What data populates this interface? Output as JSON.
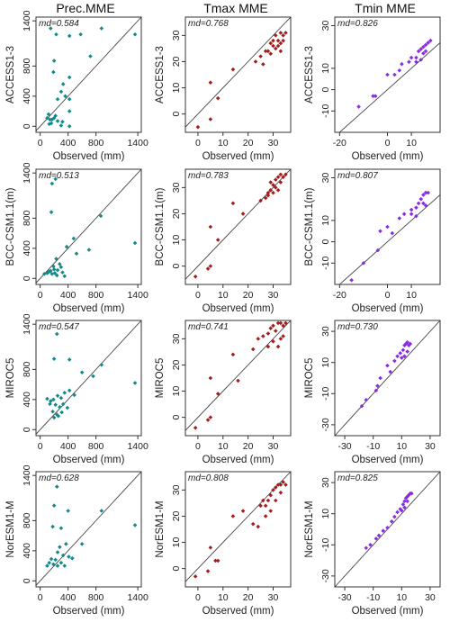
{
  "column_titles": {
    "prec": "Prec.MME",
    "tmax": "Tmax MME",
    "tmin": "Tmin MME"
  },
  "x_label": "Observed (mm)",
  "colors": {
    "prec": "#128a8a",
    "tmax": "#a51c1c",
    "tmin": "#8a2be2",
    "diagonal": "#333333"
  },
  "chart_data": [
    {
      "type": "scatter",
      "row": 0,
      "col": 0,
      "ylabel": "ACCESS1-3",
      "xlabel": "Observed (mm)",
      "annotation": "md=0.584",
      "color": "#128a8a",
      "xlim": [
        -60,
        1450
      ],
      "ylim": [
        -80,
        1450
      ],
      "xticks": [
        0,
        400,
        800,
        1400
      ],
      "yticks": [
        0,
        400,
        800,
        1400
      ],
      "points": [
        [
          150,
          1300
        ],
        [
          230,
          1220
        ],
        [
          420,
          1200
        ],
        [
          580,
          1220
        ],
        [
          880,
          1300
        ],
        [
          1360,
          1220
        ],
        [
          720,
          930
        ],
        [
          200,
          870
        ],
        [
          190,
          720
        ],
        [
          420,
          650
        ],
        [
          330,
          560
        ],
        [
          300,
          460
        ],
        [
          360,
          400
        ],
        [
          420,
          360
        ],
        [
          250,
          360
        ],
        [
          420,
          200
        ],
        [
          120,
          160
        ],
        [
          220,
          140
        ],
        [
          100,
          110
        ],
        [
          170,
          90
        ],
        [
          250,
          70
        ],
        [
          320,
          60
        ],
        [
          130,
          30
        ],
        [
          160,
          40
        ],
        [
          300,
          10
        ],
        [
          420,
          0
        ],
        [
          140,
          90
        ],
        [
          200,
          110
        ]
      ]
    },
    {
      "type": "scatter",
      "row": 0,
      "col": 1,
      "ylabel": "ACCESS1-3",
      "xlabel": "Observed (mm)",
      "annotation": "md=0.768",
      "color": "#a51c1c",
      "xlim": [
        -5,
        37
      ],
      "ylim": [
        -7,
        37
      ],
      "xticks": [
        0,
        10,
        20,
        30
      ],
      "yticks": [
        0,
        10,
        20,
        30
      ],
      "points": [
        [
          0,
          -5
        ],
        [
          5,
          -2
        ],
        [
          5,
          12
        ],
        [
          8,
          6
        ],
        [
          14,
          17
        ],
        [
          23,
          20
        ],
        [
          25,
          22
        ],
        [
          27,
          24
        ],
        [
          29,
          23
        ],
        [
          30,
          26
        ],
        [
          31,
          30
        ],
        [
          32,
          28
        ],
        [
          33,
          31
        ],
        [
          33,
          27
        ],
        [
          34,
          30
        ],
        [
          35,
          31
        ],
        [
          30,
          28
        ],
        [
          31,
          25
        ],
        [
          32,
          26
        ],
        [
          28,
          24
        ],
        [
          33,
          24
        ],
        [
          34,
          28
        ],
        [
          26,
          19
        ],
        [
          29,
          27
        ]
      ]
    },
    {
      "type": "scatter",
      "row": 0,
      "col": 2,
      "ylabel": "ACCESS1-3",
      "xlabel": "Observed (mm)",
      "annotation": "md=0.826",
      "color": "#8a2be2",
      "xlim": [
        -22,
        22
      ],
      "ylim": [
        -20,
        34
      ],
      "xticks": [
        -20,
        0,
        10
      ],
      "yticks": [
        -10,
        0,
        10,
        30
      ],
      "points": [
        [
          -12,
          -8
        ],
        [
          -6,
          -3
        ],
        [
          -5,
          -3
        ],
        [
          0,
          7
        ],
        [
          3,
          7
        ],
        [
          5,
          9
        ],
        [
          6,
          12
        ],
        [
          10,
          15
        ],
        [
          12,
          15
        ],
        [
          13,
          18
        ],
        [
          14,
          19
        ],
        [
          15,
          17
        ],
        [
          15,
          20
        ],
        [
          16,
          21
        ],
        [
          17,
          22
        ],
        [
          18,
          23
        ],
        [
          16,
          18
        ],
        [
          12,
          13
        ],
        [
          9,
          13
        ],
        [
          14,
          14
        ]
      ]
    },
    {
      "type": "scatter",
      "row": 1,
      "col": 0,
      "ylabel": "BCC-CSM1.1(m)",
      "xlabel": "Observed (mm)",
      "annotation": "md=0.513",
      "color": "#128a8a",
      "xlim": [
        -60,
        1450
      ],
      "ylim": [
        -80,
        1450
      ],
      "xticks": [
        0,
        400,
        800,
        1400
      ],
      "yticks": [
        0,
        400,
        800,
        1400
      ],
      "points": [
        [
          220,
          1320
        ],
        [
          170,
          1260
        ],
        [
          160,
          880
        ],
        [
          870,
          830
        ],
        [
          480,
          530
        ],
        [
          380,
          420
        ],
        [
          700,
          380
        ],
        [
          520,
          330
        ],
        [
          1360,
          470
        ],
        [
          230,
          260
        ],
        [
          300,
          150
        ],
        [
          200,
          120
        ],
        [
          150,
          100
        ],
        [
          250,
          110
        ],
        [
          100,
          70
        ],
        [
          60,
          60
        ],
        [
          320,
          80
        ],
        [
          190,
          160
        ],
        [
          280,
          190
        ],
        [
          130,
          90
        ],
        [
          210,
          70
        ],
        [
          170,
          60
        ],
        [
          240,
          40
        ],
        [
          350,
          30
        ]
      ]
    },
    {
      "type": "scatter",
      "row": 1,
      "col": 1,
      "ylabel": "BCC-CSM1.1(m)",
      "xlabel": "Observed (mm)",
      "annotation": "md=0.783",
      "color": "#a51c1c",
      "xlim": [
        -5,
        37
      ],
      "ylim": [
        -7,
        37
      ],
      "xticks": [
        0,
        10,
        20,
        30
      ],
      "yticks": [
        0,
        10,
        20,
        30
      ],
      "points": [
        [
          -1,
          -4
        ],
        [
          4,
          -1
        ],
        [
          5,
          0
        ],
        [
          5,
          15
        ],
        [
          8,
          10
        ],
        [
          14,
          24
        ],
        [
          18,
          20
        ],
        [
          25,
          25
        ],
        [
          27,
          26
        ],
        [
          28,
          27
        ],
        [
          29,
          29
        ],
        [
          30,
          31
        ],
        [
          31,
          33
        ],
        [
          32,
          34
        ],
        [
          33,
          35
        ],
        [
          34,
          34
        ],
        [
          35,
          35
        ],
        [
          30,
          28
        ],
        [
          31,
          30
        ],
        [
          32,
          29
        ],
        [
          33,
          32
        ],
        [
          28,
          28
        ],
        [
          29,
          32
        ]
      ]
    },
    {
      "type": "scatter",
      "row": 1,
      "col": 2,
      "ylabel": "BCC-CSM1.1(m)",
      "xlabel": "Observed (mm)",
      "annotation": "md=0.807",
      "color": "#8a2be2",
      "xlim": [
        -22,
        22
      ],
      "ylim": [
        -20,
        34
      ],
      "xticks": [
        -20,
        0,
        10
      ],
      "yticks": [
        -10,
        0,
        10,
        30
      ],
      "points": [
        [
          -15,
          -18
        ],
        [
          -10,
          -10
        ],
        [
          -4,
          -4
        ],
        [
          -3,
          5
        ],
        [
          0,
          7
        ],
        [
          2,
          4
        ],
        [
          5,
          11
        ],
        [
          7,
          13
        ],
        [
          10,
          15
        ],
        [
          12,
          16
        ],
        [
          13,
          18
        ],
        [
          14,
          20
        ],
        [
          15,
          22
        ],
        [
          16,
          23
        ],
        [
          17,
          23
        ],
        [
          15,
          18
        ],
        [
          12,
          12
        ],
        [
          10,
          13
        ],
        [
          16,
          17
        ]
      ]
    },
    {
      "type": "scatter",
      "row": 2,
      "col": 0,
      "ylabel": "MIROC5",
      "xlabel": "Observed (mm)",
      "annotation": "md=0.547",
      "color": "#128a8a",
      "xlim": [
        -60,
        1450
      ],
      "ylim": [
        -80,
        1450
      ],
      "xticks": [
        0,
        400,
        800,
        1400
      ],
      "yticks": [
        0,
        400,
        800,
        1400
      ],
      "points": [
        [
          240,
          1270
        ],
        [
          200,
          940
        ],
        [
          420,
          930
        ],
        [
          600,
          760
        ],
        [
          760,
          710
        ],
        [
          880,
          860
        ],
        [
          1360,
          620
        ],
        [
          100,
          410
        ],
        [
          150,
          380
        ],
        [
          190,
          400
        ],
        [
          250,
          450
        ],
        [
          300,
          420
        ],
        [
          350,
          490
        ],
        [
          420,
          520
        ],
        [
          490,
          460
        ],
        [
          140,
          340
        ],
        [
          220,
          330
        ],
        [
          280,
          300
        ],
        [
          330,
          340
        ],
        [
          390,
          290
        ],
        [
          180,
          240
        ],
        [
          240,
          200
        ],
        [
          310,
          230
        ],
        [
          260,
          180
        ],
        [
          200,
          160
        ]
      ]
    },
    {
      "type": "scatter",
      "row": 2,
      "col": 1,
      "ylabel": "MIROC5",
      "xlabel": "Observed (mm)",
      "annotation": "md=0.741",
      "color": "#a51c1c",
      "xlim": [
        -5,
        37
      ],
      "ylim": [
        -7,
        37
      ],
      "xticks": [
        0,
        10,
        20,
        30
      ],
      "yticks": [
        0,
        10,
        20,
        30
      ],
      "points": [
        [
          -1,
          -4
        ],
        [
          4,
          -1
        ],
        [
          5,
          0
        ],
        [
          5,
          15
        ],
        [
          8,
          9
        ],
        [
          14,
          24
        ],
        [
          16,
          14
        ],
        [
          22,
          26
        ],
        [
          24,
          30
        ],
        [
          26,
          31
        ],
        [
          28,
          32
        ],
        [
          29,
          34
        ],
        [
          30,
          35
        ],
        [
          31,
          33
        ],
        [
          32,
          36
        ],
        [
          33,
          36
        ],
        [
          34,
          35
        ],
        [
          35,
          36
        ],
        [
          30,
          29
        ],
        [
          32,
          27
        ],
        [
          33,
          30
        ],
        [
          34,
          31
        ],
        [
          28,
          27
        ]
      ]
    },
    {
      "type": "scatter",
      "row": 2,
      "col": 2,
      "ylabel": "MIROC5",
      "xlabel": "Observed (mm)",
      "annotation": "md=0.730",
      "color": "#8a2be2",
      "xlim": [
        -37,
        37
      ],
      "ylim": [
        -37,
        37
      ],
      "xticks": [
        -30,
        -10,
        10,
        30
      ],
      "yticks": [
        -30,
        -10,
        10,
        30
      ],
      "points": [
        [
          -18,
          -18
        ],
        [
          -15,
          -14
        ],
        [
          -8,
          -8
        ],
        [
          -7,
          -5
        ],
        [
          -5,
          0
        ],
        [
          0,
          8
        ],
        [
          2,
          4
        ],
        [
          5,
          11
        ],
        [
          7,
          14
        ],
        [
          9,
          16
        ],
        [
          11,
          18
        ],
        [
          12,
          21
        ],
        [
          13,
          22
        ],
        [
          14,
          23
        ],
        [
          15,
          21
        ],
        [
          16,
          22
        ],
        [
          14,
          17
        ],
        [
          12,
          14
        ],
        [
          10,
          13
        ]
      ]
    },
    {
      "type": "scatter",
      "row": 3,
      "col": 0,
      "ylabel": "NorESM1-M",
      "xlabel": "Observed (mm)",
      "annotation": "md=0.628",
      "color": "#128a8a",
      "xlim": [
        -60,
        1450
      ],
      "ylim": [
        -80,
        1450
      ],
      "xticks": [
        0,
        400,
        800,
        1400
      ],
      "yticks": [
        0,
        400,
        800,
        1400
      ],
      "points": [
        [
          240,
          1250
        ],
        [
          200,
          1000
        ],
        [
          400,
          930
        ],
        [
          880,
          930
        ],
        [
          1360,
          740
        ],
        [
          180,
          720
        ],
        [
          300,
          700
        ],
        [
          600,
          490
        ],
        [
          370,
          490
        ],
        [
          280,
          450
        ],
        [
          250,
          380
        ],
        [
          330,
          340
        ],
        [
          410,
          320
        ],
        [
          460,
          300
        ],
        [
          160,
          290
        ],
        [
          220,
          280
        ],
        [
          130,
          240
        ],
        [
          190,
          220
        ],
        [
          100,
          200
        ],
        [
          300,
          240
        ],
        [
          350,
          200
        ],
        [
          250,
          200
        ]
      ]
    },
    {
      "type": "scatter",
      "row": 3,
      "col": 1,
      "ylabel": "NorESM1-M",
      "xlabel": "Observed (mm)",
      "annotation": "md=0.808",
      "color": "#a51c1c",
      "xlim": [
        -5,
        37
      ],
      "ylim": [
        -7,
        37
      ],
      "xticks": [
        0,
        10,
        20,
        30
      ],
      "yticks": [
        0,
        10,
        20,
        30
      ],
      "points": [
        [
          -1,
          -3
        ],
        [
          4,
          -1
        ],
        [
          5,
          8
        ],
        [
          7,
          3
        ],
        [
          8,
          3
        ],
        [
          14,
          20
        ],
        [
          18,
          22
        ],
        [
          22,
          17
        ],
        [
          24,
          16
        ],
        [
          25,
          24
        ],
        [
          26,
          26
        ],
        [
          27,
          24
        ],
        [
          28,
          26
        ],
        [
          29,
          28
        ],
        [
          30,
          30
        ],
        [
          31,
          31
        ],
        [
          32,
          32
        ],
        [
          33,
          32
        ],
        [
          34,
          33
        ],
        [
          35,
          32
        ],
        [
          29,
          22
        ],
        [
          31,
          26
        ],
        [
          33,
          29
        ],
        [
          27,
          20
        ]
      ]
    },
    {
      "type": "scatter",
      "row": 3,
      "col": 2,
      "ylabel": "NorESM1-M",
      "xlabel": "Observed (mm)",
      "annotation": "md=0.825",
      "color": "#8a2be2",
      "xlim": [
        -37,
        37
      ],
      "ylim": [
        -37,
        37
      ],
      "xticks": [
        -30,
        -10,
        10,
        30
      ],
      "yticks": [
        -30,
        -10,
        10,
        30
      ],
      "points": [
        [
          -15,
          -12
        ],
        [
          -12,
          -10
        ],
        [
          -8,
          -6
        ],
        [
          -6,
          -4
        ],
        [
          -3,
          -1
        ],
        [
          0,
          1
        ],
        [
          3,
          5
        ],
        [
          5,
          8
        ],
        [
          7,
          11
        ],
        [
          9,
          13
        ],
        [
          11,
          16
        ],
        [
          12,
          18
        ],
        [
          13,
          20
        ],
        [
          14,
          21
        ],
        [
          15,
          22
        ],
        [
          16,
          23
        ],
        [
          17,
          23
        ],
        [
          14,
          18
        ],
        [
          10,
          12
        ],
        [
          12,
          14
        ]
      ]
    }
  ]
}
